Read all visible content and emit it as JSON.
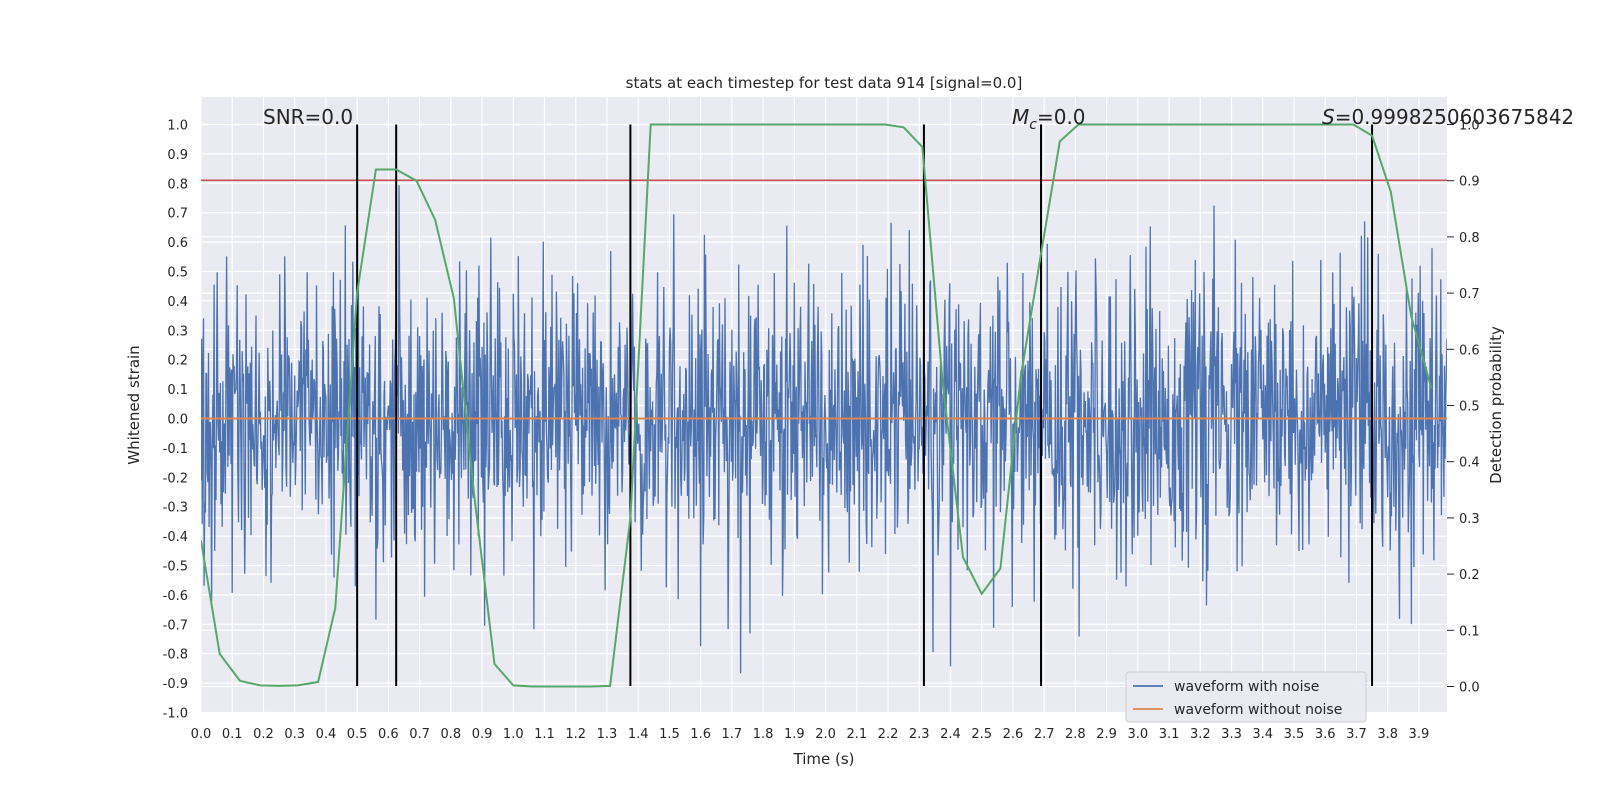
{
  "chart_data": {
    "type": "line",
    "title": "stats at each timestep for test data 914 [signal=0.0]",
    "xlabel": "Time (s)",
    "ylabel": "Whitened strain",
    "y2label": "Detection probability",
    "xlim": [
      0.0,
      3.99
    ],
    "ylim": [
      -1.0,
      1.1
    ],
    "y2lim": [
      -0.05,
      1.0
    ],
    "x_ticks": [
      "0.0",
      "0.1",
      "0.2",
      "0.3",
      "0.4",
      "0.5",
      "0.6",
      "0.7",
      "0.8",
      "0.9",
      "1.0",
      "1.1",
      "1.2",
      "1.3",
      "1.4",
      "1.5",
      "1.6",
      "1.7",
      "1.8",
      "1.9",
      "2.0",
      "2.1",
      "2.2",
      "2.3",
      "2.4",
      "2.5",
      "2.6",
      "2.7",
      "2.8",
      "2.9",
      "3.0",
      "3.1",
      "3.2",
      "3.3",
      "3.4",
      "3.5",
      "3.6",
      "3.7",
      "3.8",
      "3.9"
    ],
    "y_ticks": [
      "1.0",
      "0.9",
      "0.8",
      "0.7",
      "0.6",
      "0.5",
      "0.4",
      "0.3",
      "0.2",
      "0.1",
      "0.0",
      "-0.1",
      "-0.2",
      "-0.3",
      "-0.4",
      "-0.5",
      "-0.6",
      "-0.7",
      "-0.8",
      "-0.9",
      "-1.0"
    ],
    "y2_ticks": [
      "1.0",
      "0.9",
      "0.8",
      "0.7",
      "0.6",
      "0.5",
      "0.4",
      "0.3",
      "0.2",
      "0.1",
      "0.0"
    ],
    "grid": true,
    "legend_position": "bottom-right",
    "annotations": {
      "snr": "SNR=0.0",
      "mc_prefix": "M",
      "mc_sub": "c",
      "mc_value": "=0.0",
      "s_prefix": "S",
      "s_value": "=0.9998250603675842"
    },
    "series": [
      {
        "name": "waveform with noise",
        "axis": "left",
        "color": "#4c72b0",
        "sample_interval": 0.002,
        "envelope_min": -0.92,
        "envelope_max": 1.0,
        "noise_std": 0.24
      },
      {
        "name": "waveform without noise",
        "axis": "left",
        "color": "#dd8452",
        "x": [
          0.0,
          3.99
        ],
        "y": [
          0.0,
          0.0
        ]
      },
      {
        "axis": "right",
        "color": "#55a868",
        "x": [
          0.0,
          0.06,
          0.125,
          0.19,
          0.25,
          0.31,
          0.375,
          0.43,
          0.5,
          0.56,
          0.625,
          0.69,
          0.75,
          0.81,
          0.875,
          0.94,
          1.0,
          1.06,
          1.125,
          1.19,
          1.25,
          1.31,
          1.375,
          1.44,
          1.5,
          1.56,
          1.625,
          1.69,
          1.75,
          1.81,
          1.875,
          1.94,
          2.0,
          2.06,
          2.125,
          2.19,
          2.25,
          2.31,
          2.375,
          2.44,
          2.5,
          2.56,
          2.625,
          2.69,
          2.75,
          2.81,
          2.875,
          2.94,
          3.0,
          3.06,
          3.125,
          3.19,
          3.25,
          3.31,
          3.375,
          3.44,
          3.5,
          3.56,
          3.625,
          3.69,
          3.75,
          3.81,
          3.875,
          3.94
        ],
        "y": [
          0.26,
          0.058,
          0.01,
          0.002,
          0.001,
          0.002,
          0.008,
          0.14,
          0.7,
          0.92,
          0.92,
          0.9,
          0.83,
          0.69,
          0.34,
          0.04,
          0.002,
          0.0,
          0.0,
          0.0,
          0.0,
          0.001,
          0.3,
          1.0,
          1.0,
          1.0,
          1.0,
          1.0,
          1.0,
          1.0,
          1.0,
          1.0,
          1.0,
          1.0,
          1.0,
          1.0,
          0.995,
          0.96,
          0.54,
          0.23,
          0.165,
          0.21,
          0.55,
          0.77,
          0.97,
          1.0,
          1.0,
          1.0,
          1.0,
          1.0,
          1.0,
          1.0,
          1.0,
          1.0,
          1.0,
          1.0,
          1.0,
          1.0,
          1.0,
          1.0,
          0.98,
          0.88,
          0.66,
          0.53
        ]
      }
    ],
    "hlines": [
      {
        "axis": "left",
        "y": 0.81,
        "color": "#c44e52"
      }
    ],
    "vlines": [
      {
        "x": 0.5,
        "ymin": -0.91,
        "ymax": 1.0,
        "color": "#000000"
      },
      {
        "x": 0.625,
        "ymin": -0.91,
        "ymax": 1.0,
        "color": "#000000"
      },
      {
        "x": 1.375,
        "ymin": -0.91,
        "ymax": 1.0,
        "color": "#000000"
      },
      {
        "x": 2.315,
        "ymin": -0.91,
        "ymax": 1.0,
        "color": "#000000"
      },
      {
        "x": 2.69,
        "ymin": -0.91,
        "ymax": 1.0,
        "color": "#000000"
      },
      {
        "x": 3.75,
        "ymin": -0.91,
        "ymax": 1.0,
        "color": "#000000"
      }
    ]
  }
}
